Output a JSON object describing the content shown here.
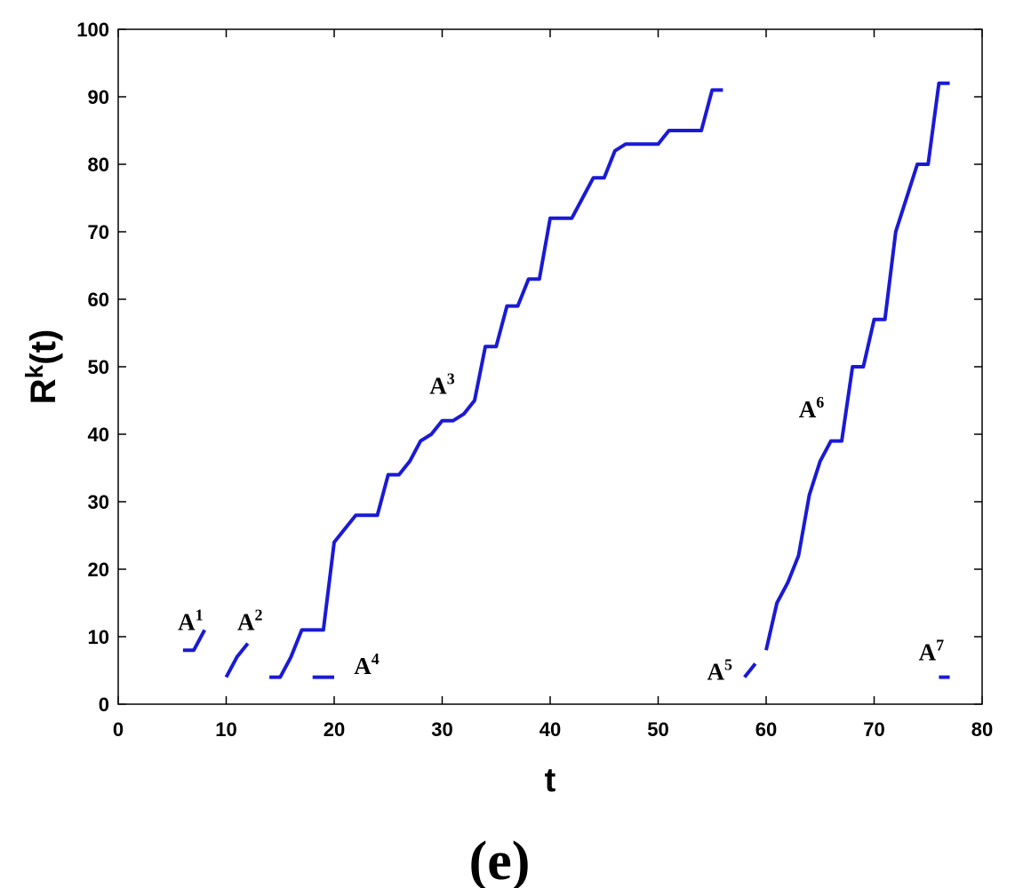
{
  "chart_data": {
    "type": "line",
    "title": "",
    "xlabel": "t",
    "ylabel_main": "R",
    "ylabel_sup": "k",
    "ylabel_tail": "(t)",
    "panel_label": "(e)",
    "xlim": [
      0,
      80
    ],
    "ylim": [
      0,
      100
    ],
    "xticks": [
      0,
      10,
      20,
      30,
      40,
      50,
      60,
      70,
      80
    ],
    "yticks": [
      0,
      10,
      20,
      30,
      40,
      50,
      60,
      70,
      80,
      90,
      100
    ],
    "grid": false,
    "line_color": "#1a1ad6",
    "series": [
      {
        "label_main": "A",
        "label_sup": "1",
        "label_at": [
          6.7,
          11
        ],
        "x": [
          6,
          7,
          8
        ],
        "y": [
          8,
          8,
          11
        ]
      },
      {
        "label_main": "A",
        "label_sup": "2",
        "label_at": [
          12.2,
          11
        ],
        "x": [
          10,
          11,
          12
        ],
        "y": [
          4,
          7,
          9
        ]
      },
      {
        "label_main": "A",
        "label_sup": "3",
        "label_at": [
          30,
          46
        ],
        "x": [
          14,
          15,
          16,
          17,
          18,
          19,
          20,
          21,
          22,
          23,
          24,
          25,
          26,
          27,
          28,
          29,
          30,
          31,
          32,
          33,
          34,
          35,
          36,
          37,
          38,
          39,
          40,
          41,
          42,
          43,
          44,
          45,
          46,
          47,
          48,
          49,
          50,
          51,
          52,
          53,
          54,
          55,
          56
        ],
        "y": [
          4,
          4,
          7,
          11,
          11,
          11,
          24,
          26,
          28,
          28,
          28,
          34,
          34,
          36,
          39,
          40,
          42,
          42,
          43,
          45,
          53,
          53,
          59,
          59,
          63,
          63,
          72,
          72,
          72,
          75,
          78,
          78,
          82,
          83,
          83,
          83,
          83,
          85,
          85,
          85,
          85,
          91,
          91
        ]
      },
      {
        "label_main": "A",
        "label_sup": "4",
        "label_at": [
          23,
          4.5
        ],
        "x": [
          18,
          20
        ],
        "y": [
          4,
          4
        ]
      },
      {
        "label_main": "A",
        "label_sup": "5",
        "label_at": [
          55.7,
          3.6
        ],
        "x": [
          58,
          59
        ],
        "y": [
          4,
          6
        ]
      },
      {
        "label_main": "A",
        "label_sup": "6",
        "label_at": [
          64.2,
          42.5
        ],
        "x": [
          60,
          61,
          62,
          63,
          64,
          65,
          66,
          67,
          68,
          69,
          70,
          71,
          72,
          73,
          74,
          75,
          76,
          77
        ],
        "y": [
          8,
          15,
          18,
          22,
          31,
          36,
          39,
          39,
          50,
          50,
          57,
          57,
          70,
          75,
          80,
          80,
          92,
          92
        ]
      },
      {
        "label_main": "A",
        "label_sup": "7",
        "label_at": [
          75.3,
          6.5
        ],
        "x": [
          76,
          77
        ],
        "y": [
          4,
          4
        ]
      }
    ]
  }
}
